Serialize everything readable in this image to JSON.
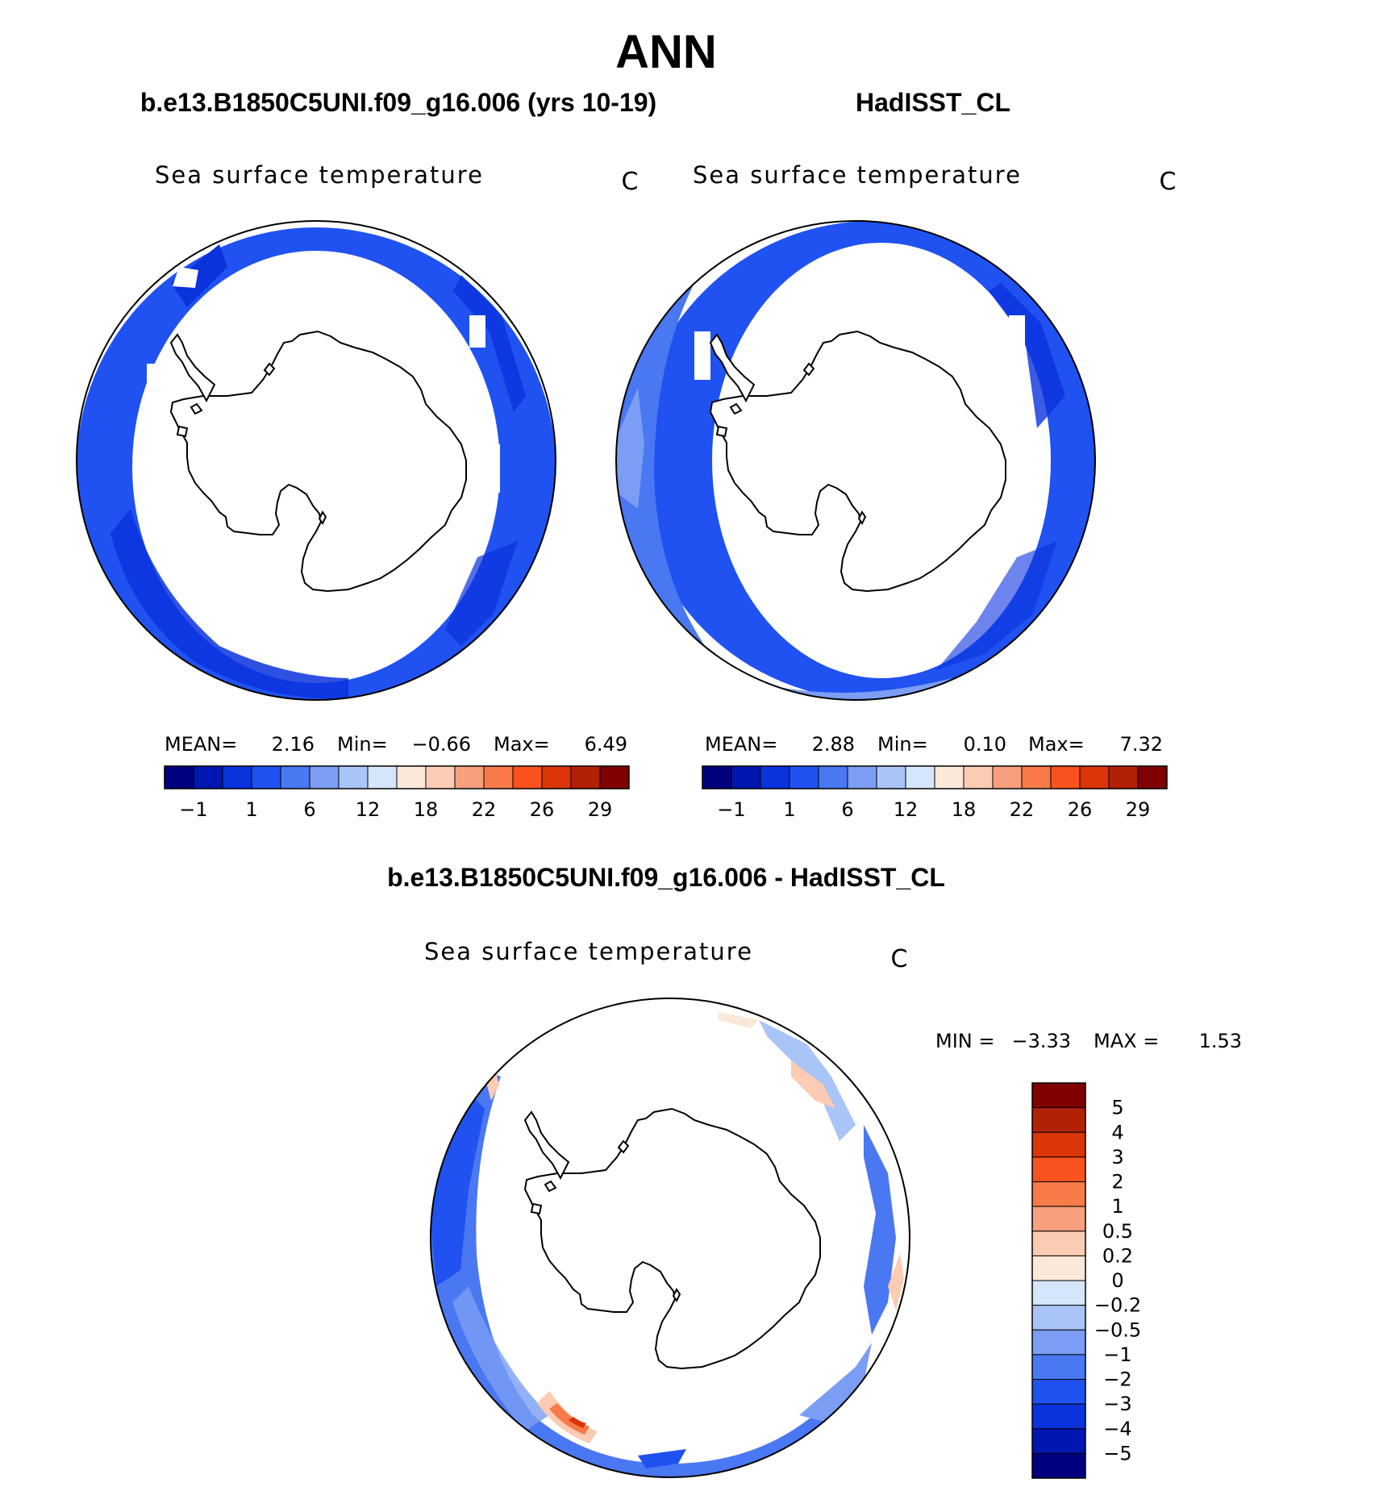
{
  "page": {
    "title": "ANN"
  },
  "panels": [
    {
      "title": "b.e13.B1850C5UNI.f09_g16.006 (yrs 10-19)",
      "variable": "Sea surface temperature",
      "units": "C",
      "stats": {
        "mean_label": "MEAN=",
        "mean": "2.16",
        "min_label": "Min=",
        "min": "−0.66",
        "max_label": "Max=",
        "max": "6.49"
      }
    },
    {
      "title": "HadISST_CL",
      "variable": "Sea surface temperature",
      "units": "C",
      "stats": {
        "mean_label": "MEAN=",
        "mean": "2.88",
        "min_label": "Min=",
        "min": "0.10",
        "max_label": "Max=",
        "max": "7.32"
      }
    }
  ],
  "sst_colorbar": {
    "colors": [
      "#00007f",
      "#0016b0",
      "#0a32dd",
      "#1f52f0",
      "#4a77f2",
      "#7b9df4",
      "#a9c4f7",
      "#d6e6fa",
      "#fbe8d8",
      "#fbcbb3",
      "#f7a07e",
      "#f77a48",
      "#f9521e",
      "#db3508",
      "#b32105",
      "#800000"
    ],
    "labels": [
      "−1",
      "1",
      "6",
      "12",
      "18",
      "22",
      "26",
      "29"
    ]
  },
  "diff_panel": {
    "title": "b.e13.B1850C5UNI.f09_g16.006 - HadISST_CL",
    "variable": "Sea surface temperature",
    "units": "C",
    "stats": {
      "min_label": "MIN =",
      "min": "−3.33",
      "max_label": "MAX =",
      "max": "1.53"
    }
  },
  "diff_colorbar": {
    "colors": [
      "#800000",
      "#b32105",
      "#db3508",
      "#f9521e",
      "#f77a48",
      "#f7a07e",
      "#fbcbb3",
      "#fbe8d8",
      "#d6e6fa",
      "#a9c4f7",
      "#7b9df4",
      "#4a77f2",
      "#1f52f0",
      "#0a32dd",
      "#0016b0",
      "#00007f"
    ],
    "labels": [
      "5",
      "4",
      "3",
      "2",
      "1",
      "0.5",
      "0.2",
      "0",
      "−0.2",
      "−0.5",
      "−1",
      "−2",
      "−3",
      "−4",
      "−5"
    ]
  }
}
